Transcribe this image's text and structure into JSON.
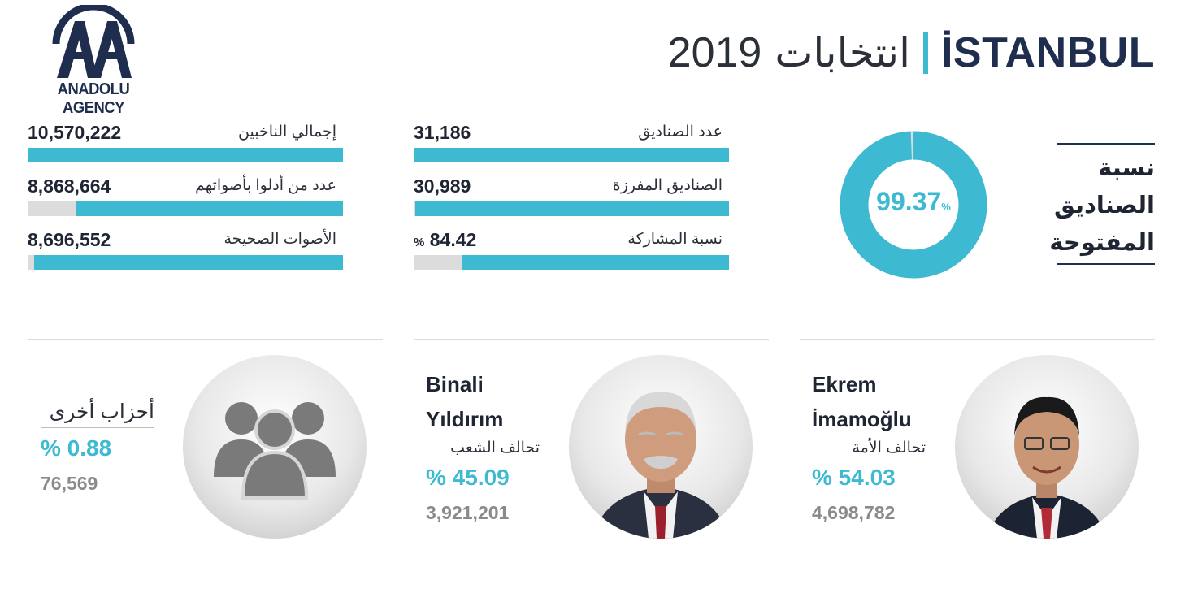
{
  "logo": {
    "text": "ANADOLU AGENCY"
  },
  "title": {
    "year": "2019",
    "word": "انتخابات",
    "city": "İSTANBUL"
  },
  "colors": {
    "accent": "#3dbad1",
    "navy": "#1f2d4e",
    "track": "#dcdcdc",
    "muted": "#8a8a8a"
  },
  "stats_left": [
    {
      "label": "إجمالي الناخبين",
      "value": "10,570,222",
      "fill": 1.0
    },
    {
      "label": "عدد من أدلوا بأصواتهم",
      "value": "8,868,664",
      "fill": 0.8442
    },
    {
      "label": "الأصوات الصحيحة",
      "value": "8,696,552",
      "fill": 0.9806
    }
  ],
  "stats_right": [
    {
      "label": "عدد الصناديق",
      "value": "31,186",
      "fill": 1.0
    },
    {
      "label": "الصناديق المفرزة",
      "value": "30,989",
      "fill": 0.9937
    },
    {
      "label": "نسبة المشاركة",
      "value": "84.42",
      "unit": "%",
      "fill": 0.8442
    }
  ],
  "donut": {
    "value": "99.37",
    "sign": "%",
    "fraction": 0.9937
  },
  "open_boxes_label": "نسبة الصناديق المفتوحة",
  "candidates": [
    {
      "name_line1": "Ekrem",
      "name_line2": "İmamoğlu",
      "party": "تحالف الأمة",
      "percent": "% 54.03",
      "votes": "4,698,782"
    },
    {
      "name_line1": "Binali",
      "name_line2": "Yıldırım",
      "party": "تحالف الشعب",
      "percent": "% 45.09",
      "votes": "3,921,201"
    }
  ],
  "others": {
    "label": "أحزاب أخرى",
    "percent": "% 0.88",
    "votes": "76,569"
  },
  "icons": {
    "people": "people-group-icon",
    "logo": "anadolu-logo-icon"
  }
}
